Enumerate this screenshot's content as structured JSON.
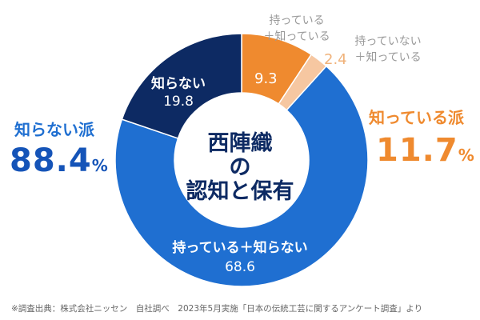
{
  "chart_data": {
    "type": "pie",
    "donut": true,
    "center_title": [
      "西陣織",
      "の",
      "認知と保有"
    ],
    "slices": [
      {
        "label": "持っている\n＋知っている",
        "value": 9.3,
        "value_text": "9.3",
        "color": "#ef8a2f"
      },
      {
        "label": "持っていない\n＋知っている",
        "value": 2.4,
        "value_text": "2.4",
        "color": "#f6c7a1"
      },
      {
        "label": "持っている＋知らない",
        "value": 68.6,
        "value_text": "68.6",
        "color": "#1f6fd1"
      },
      {
        "label": "知らない",
        "value": 19.8,
        "value_text": "19.8",
        "color": "#0d2a63"
      }
    ],
    "groups": {
      "left": {
        "label": "知らない派",
        "value": "88.4",
        "unit": "%"
      },
      "right": {
        "label": "知っている派",
        "value": "11.7",
        "unit": "%"
      }
    }
  },
  "labels": {
    "s1_line1": "持っている",
    "s1_line2": "＋知っている",
    "s2_line1": "持っていない",
    "s2_line2": "＋知っている",
    "s3_line1": "持っている＋知らない",
    "s4_line1": "知らない"
  },
  "footnote": "※調査出典：株式会社ニッセン　自社調べ　2023年5月実施「日本の伝統工芸に関するアンケート調査」より"
}
